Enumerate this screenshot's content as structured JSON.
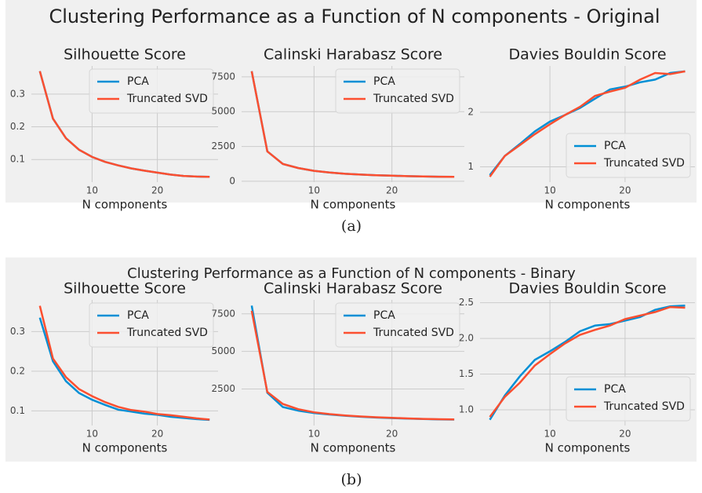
{
  "figures": [
    {
      "title": "Clustering Performance as a Function of N components - Original",
      "caption": "(a)"
    },
    {
      "title": "Clustering Performance as a Function of N components - Binary",
      "caption": "(b)"
    }
  ],
  "chart_data": [
    {
      "type": "line",
      "title": "Silhouette Score",
      "xlabel": "N components",
      "x": [
        2,
        4,
        6,
        8,
        10,
        12,
        14,
        16,
        18,
        20,
        22,
        24,
        26,
        28
      ],
      "xlim": [
        0.7,
        29.3
      ],
      "xticks": [
        10,
        20
      ],
      "ylim": [
        0.031,
        0.386
      ],
      "yticks": [
        0.1,
        0.2,
        0.3
      ],
      "grid": true,
      "legend": "upper right",
      "series": [
        {
          "name": "PCA",
          "color": "#008fd5",
          "values": [
            0.37,
            0.225,
            0.165,
            0.13,
            0.108,
            0.093,
            0.082,
            0.073,
            0.066,
            0.06,
            0.054,
            0.05,
            0.048,
            0.047
          ]
        },
        {
          "name": "Truncated SVD",
          "color": "#fc4f30",
          "values": [
            0.37,
            0.225,
            0.165,
            0.13,
            0.108,
            0.093,
            0.082,
            0.073,
            0.066,
            0.06,
            0.054,
            0.05,
            0.048,
            0.047
          ]
        }
      ]
    },
    {
      "type": "line",
      "title": "Calinski Harabasz Score",
      "xlabel": "N components",
      "x": [
        2,
        4,
        6,
        8,
        10,
        12,
        14,
        16,
        18,
        20,
        22,
        24,
        26,
        28
      ],
      "xlim": [
        0.7,
        29.3
      ],
      "xticks": [
        10,
        20
      ],
      "ylim": [
        -60,
        8280
      ],
      "yticks": [
        0,
        2500,
        5000,
        7500
      ],
      "grid": true,
      "legend": "upper right",
      "series": [
        {
          "name": "PCA",
          "color": "#008fd5",
          "values": [
            7900,
            2150,
            1250,
            950,
            750,
            630,
            540,
            480,
            430,
            400,
            370,
            350,
            330,
            320
          ]
        },
        {
          "name": "Truncated SVD",
          "color": "#fc4f30",
          "values": [
            7900,
            2150,
            1250,
            950,
            750,
            630,
            540,
            480,
            430,
            400,
            370,
            350,
            330,
            320
          ]
        }
      ]
    },
    {
      "type": "line",
      "title": "Davies Bouldin Score",
      "xlabel": "N components",
      "x": [
        2,
        4,
        6,
        8,
        10,
        12,
        14,
        16,
        18,
        20,
        22,
        24,
        26,
        28
      ],
      "xlim": [
        0.7,
        29.3
      ],
      "xticks": [
        10,
        20
      ],
      "ylim": [
        0.72,
        2.85
      ],
      "yticks": [
        1,
        2
      ],
      "grid": true,
      "legend": "lower right",
      "series": [
        {
          "name": "PCA",
          "color": "#008fd5",
          "values": [
            0.85,
            1.2,
            1.42,
            1.65,
            1.83,
            1.95,
            2.08,
            2.25,
            2.42,
            2.47,
            2.55,
            2.6,
            2.72,
            2.75
          ]
        },
        {
          "name": "Truncated SVD",
          "color": "#fc4f30",
          "values": [
            0.82,
            1.2,
            1.4,
            1.6,
            1.78,
            1.95,
            2.1,
            2.3,
            2.38,
            2.45,
            2.6,
            2.72,
            2.7,
            2.75
          ]
        }
      ]
    },
    {
      "type": "line",
      "title": "Silhouette Score",
      "xlabel": "N components",
      "x": [
        2,
        4,
        6,
        8,
        10,
        12,
        14,
        16,
        18,
        20,
        22,
        24,
        26,
        28
      ],
      "xlim": [
        0.7,
        29.3
      ],
      "xticks": [
        10,
        20
      ],
      "ylim": [
        0.063,
        0.38
      ],
      "yticks": [
        0.1,
        0.2,
        0.3
      ],
      "grid": true,
      "legend": "upper right",
      "series": [
        {
          "name": "PCA",
          "color": "#008fd5",
          "values": [
            0.335,
            0.225,
            0.175,
            0.145,
            0.128,
            0.115,
            0.103,
            0.098,
            0.093,
            0.09,
            0.085,
            0.082,
            0.079,
            0.077
          ]
        },
        {
          "name": "Truncated SVD",
          "color": "#fc4f30",
          "values": [
            0.365,
            0.232,
            0.185,
            0.155,
            0.137,
            0.122,
            0.11,
            0.102,
            0.098,
            0.092,
            0.089,
            0.085,
            0.081,
            0.078
          ]
        }
      ]
    },
    {
      "type": "line",
      "title": "Calinski Harabasz Score",
      "xlabel": "N components",
      "x": [
        2,
        4,
        6,
        8,
        10,
        12,
        14,
        16,
        18,
        20,
        22,
        24,
        26,
        28
      ],
      "xlim": [
        0.7,
        29.3
      ],
      "xticks": [
        10,
        20
      ],
      "ylim": [
        70,
        8430
      ],
      "yticks": [
        2500,
        5000,
        7500
      ],
      "grid": true,
      "legend": "upper right",
      "series": [
        {
          "name": "PCA",
          "color": "#008fd5",
          "values": [
            8050,
            2250,
            1300,
            1050,
            900,
            800,
            720,
            650,
            600,
            560,
            530,
            500,
            480,
            460
          ]
        },
        {
          "name": "Truncated SVD",
          "color": "#fc4f30",
          "values": [
            7700,
            2300,
            1500,
            1150,
            950,
            830,
            740,
            670,
            620,
            580,
            540,
            510,
            490,
            470
          ]
        }
      ]
    },
    {
      "type": "line",
      "title": "Davies Bouldin Score",
      "xlabel": "N components",
      "x": [
        2,
        4,
        6,
        8,
        10,
        12,
        14,
        16,
        18,
        20,
        22,
        24,
        26,
        28
      ],
      "xlim": [
        0.7,
        29.3
      ],
      "xticks": [
        10,
        20
      ],
      "ylim": [
        0.78,
        2.54
      ],
      "yticks": [
        {
          "value": 1,
          "label": "1.0"
        },
        1.5,
        {
          "value": 2,
          "label": "2.0"
        },
        2.5
      ],
      "grid": true,
      "legend": "lower right",
      "series": [
        {
          "name": "PCA",
          "color": "#008fd5",
          "values": [
            0.86,
            1.2,
            1.47,
            1.7,
            1.82,
            1.95,
            2.1,
            2.18,
            2.2,
            2.25,
            2.3,
            2.4,
            2.45,
            2.46
          ]
        },
        {
          "name": "Truncated SVD",
          "color": "#fc4f30",
          "values": [
            0.9,
            1.18,
            1.38,
            1.62,
            1.78,
            1.93,
            2.05,
            2.12,
            2.18,
            2.27,
            2.32,
            2.37,
            2.44,
            2.43
          ]
        }
      ]
    }
  ]
}
